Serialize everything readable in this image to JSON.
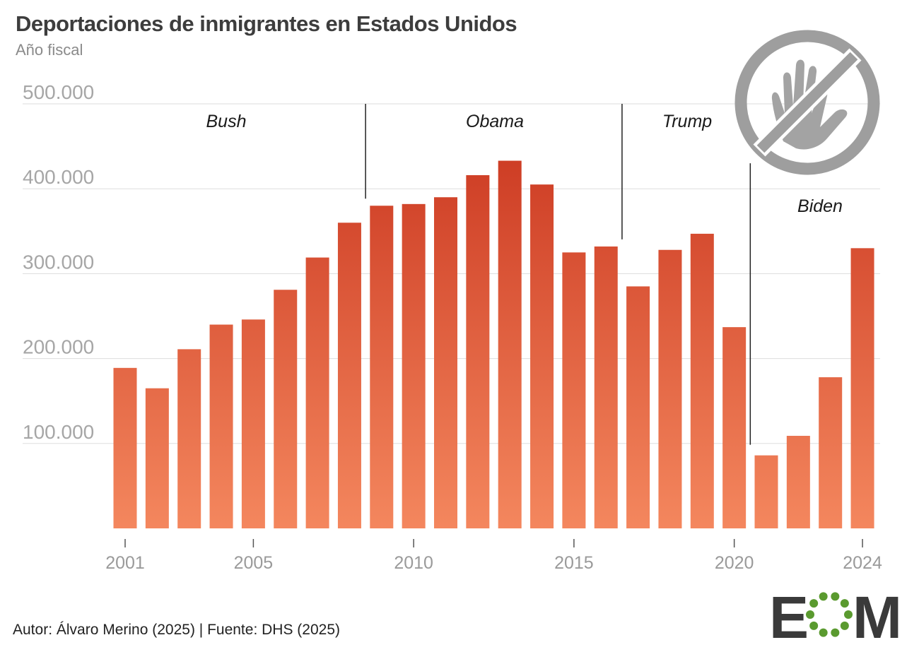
{
  "header": {
    "title": "Deportaciones de inmigrantes en Estados Unidos",
    "subtitle": "Año fiscal"
  },
  "footer": {
    "credit": "Autor: Álvaro Merino (2025) | Fuente: DHS (2025)"
  },
  "logo": {
    "left": "E",
    "right": "M"
  },
  "icon": "no-hand-stop-icon",
  "colors": {
    "bar_top": "#c8321c",
    "bar_bottom": "#f4875e",
    "grid": "#dddddd",
    "logo_green": "#5a9a2f",
    "icon_gray": "#9e9e9e"
  },
  "chart_data": {
    "type": "bar",
    "title": "Deportaciones de inmigrantes en Estados Unidos",
    "subtitle": "Año fiscal",
    "xlabel": "",
    "ylabel": "",
    "ylim": [
      0,
      500000
    ],
    "yticks": [
      100000,
      200000,
      300000,
      400000,
      500000
    ],
    "ytick_labels": [
      "100.000",
      "200.000",
      "300.000",
      "400.000",
      "500.000"
    ],
    "xtick_labels": [
      "2001",
      "2005",
      "2010",
      "2015",
      "2020",
      "2024"
    ],
    "categories": [
      2001,
      2002,
      2003,
      2004,
      2005,
      2006,
      2007,
      2008,
      2009,
      2010,
      2011,
      2012,
      2013,
      2014,
      2015,
      2016,
      2017,
      2018,
      2019,
      2020,
      2021,
      2022,
      2023,
      2024
    ],
    "values": [
      189000,
      165000,
      211000,
      240000,
      246000,
      281000,
      319000,
      360000,
      380000,
      382000,
      390000,
      416000,
      433000,
      405000,
      325000,
      332000,
      285000,
      328000,
      347000,
      237000,
      86000,
      109000,
      178000,
      330000
    ],
    "annotations": [
      {
        "label": "Bush",
        "divider_after": 2008.5
      },
      {
        "label": "Obama",
        "divider_after": 2016.5
      },
      {
        "label": "Trump",
        "divider_after": 2020.5
      },
      {
        "label": "Biden"
      }
    ]
  }
}
